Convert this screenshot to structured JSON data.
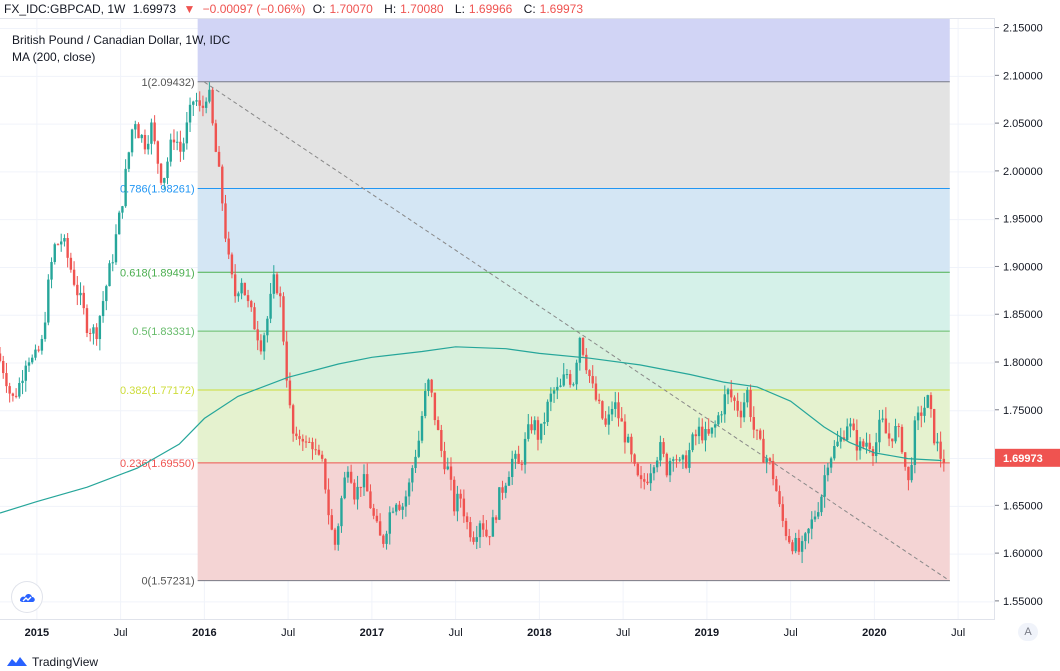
{
  "header": {
    "symbol": "FX_IDC:GBPCAD, 1W",
    "last": "1.69973",
    "change": "−0.00097 (−0.06%)",
    "o_label": "O:",
    "o": "1.70070",
    "h_label": "H:",
    "h": "1.70080",
    "l_label": "L:",
    "l": "1.69966",
    "c_label": "C:",
    "c": "1.69973"
  },
  "legend": {
    "line1": "British Pound / Canadian Dollar, 1W, IDC",
    "line2": "MA (200, close)"
  },
  "footer": {
    "brand": "TradingView"
  },
  "scale_button": "A",
  "colors": {
    "up": "#26a69a",
    "down": "#ef5350",
    "ma": "#26a69a",
    "price_tag": "#ef5350"
  },
  "icons": [
    "tradingview-logo-icon",
    "triangle-down-icon"
  ],
  "chart_data": {
    "type": "candlestick",
    "title": "British Pound / Canadian Dollar, 1W, IDC",
    "ylim": [
      1.53,
      2.16
    ],
    "xlim": [
      2014.78,
      2020.72
    ],
    "y_ticks": [
      "2.15000",
      "2.10000",
      "2.05000",
      "2.00000",
      "1.95000",
      "1.90000",
      "1.85000",
      "1.80000",
      "1.75000",
      "1.70000",
      "1.65000",
      "1.60000",
      "1.55000"
    ],
    "x_ticks": [
      {
        "label": "2015",
        "t": 2015.0
      },
      {
        "label": "Jul",
        "t": 2015.5
      },
      {
        "label": "2016",
        "t": 2016.0
      },
      {
        "label": "Jul",
        "t": 2016.5
      },
      {
        "label": "2017",
        "t": 2017.0
      },
      {
        "label": "Jul",
        "t": 2017.5
      },
      {
        "label": "2018",
        "t": 2018.0
      },
      {
        "label": "Jul",
        "t": 2018.5
      },
      {
        "label": "2019",
        "t": 2019.0
      },
      {
        "label": "Jul",
        "t": 2019.5
      },
      {
        "label": "2020",
        "t": 2020.0
      },
      {
        "label": "Jul",
        "t": 2020.5
      }
    ],
    "current_price": "1.69973",
    "fibonacci": {
      "t_start": 2015.96,
      "t_end": 2020.45,
      "top_fill_to": 2.16,
      "levels": [
        {
          "label": "1(2.09432)",
          "value": 2.09432,
          "line": "#787b86",
          "fill": "#e3e3e3"
        },
        {
          "label": "0.786(1.98261)",
          "value": 1.98261,
          "line": "#2196f3",
          "fill": "#d4e6f4"
        },
        {
          "label": "0.618(1.89491)",
          "value": 1.89491,
          "line": "#4caf50",
          "fill": "#d5f1e9"
        },
        {
          "label": "0.5(1.83331)",
          "value": 1.83331,
          "line": "#66bb6a",
          "fill": "#d7f0dc"
        },
        {
          "label": "0.382(1.77172)",
          "value": 1.77172,
          "line": "#cddc39",
          "fill": "#e5f2cf"
        },
        {
          "label": "0.236(1.69550)",
          "value": 1.6955,
          "line": "#ef5350",
          "fill": "#f4d4d4"
        },
        {
          "label": "0(1.57231)",
          "value": 1.57231,
          "line": "#787b86",
          "fill": ""
        }
      ],
      "top_band_fill": "#d1d4f5"
    },
    "trend_line": {
      "t1": 2016.0,
      "v1": 2.094,
      "t2": 2020.45,
      "v2": 1.572
    },
    "ma": {
      "name": "MA (200, close)",
      "points": [
        [
          2014.78,
          1.643
        ],
        [
          2015.0,
          1.655
        ],
        [
          2015.3,
          1.67
        ],
        [
          2015.6,
          1.69
        ],
        [
          2015.85,
          1.715
        ],
        [
          2016.0,
          1.742
        ],
        [
          2016.2,
          1.765
        ],
        [
          2016.5,
          1.785
        ],
        [
          2016.8,
          1.799
        ],
        [
          2017.0,
          1.806
        ],
        [
          2017.3,
          1.812
        ],
        [
          2017.5,
          1.817
        ],
        [
          2017.8,
          1.815
        ],
        [
          2018.0,
          1.81
        ],
        [
          2018.3,
          1.805
        ],
        [
          2018.6,
          1.798
        ],
        [
          2018.9,
          1.788
        ],
        [
          2019.1,
          1.78
        ],
        [
          2019.3,
          1.775
        ],
        [
          2019.5,
          1.76
        ],
        [
          2019.7,
          1.733
        ],
        [
          2019.85,
          1.717
        ],
        [
          2020.0,
          1.706
        ],
        [
          2020.2,
          1.7
        ],
        [
          2020.4,
          1.698
        ]
      ]
    },
    "price_path": [
      [
        2014.78,
        1.81
      ],
      [
        2014.83,
        1.79
      ],
      [
        2014.87,
        1.76
      ],
      [
        2014.92,
        1.78
      ],
      [
        2014.96,
        1.81
      ],
      [
        2015.0,
        1.8
      ],
      [
        2015.05,
        1.82
      ],
      [
        2015.08,
        1.87
      ],
      [
        2015.12,
        1.92
      ],
      [
        2015.17,
        1.93
      ],
      [
        2015.22,
        1.9
      ],
      [
        2015.27,
        1.87
      ],
      [
        2015.32,
        1.84
      ],
      [
        2015.37,
        1.83
      ],
      [
        2015.42,
        1.87
      ],
      [
        2015.47,
        1.91
      ],
      [
        2015.52,
        1.96
      ],
      [
        2015.56,
        2.01
      ],
      [
        2015.6,
        2.06
      ],
      [
        2015.63,
        2.04
      ],
      [
        2015.67,
        2.03
      ],
      [
        2015.7,
        2.05
      ],
      [
        2015.73,
        2.02
      ],
      [
        2015.77,
        1.99
      ],
      [
        2015.81,
        2.02
      ],
      [
        2015.84,
        2.04
      ],
      [
        2015.88,
        2.02
      ],
      [
        2015.92,
        2.05
      ],
      [
        2015.96,
        2.08
      ],
      [
        2016.0,
        2.06
      ],
      [
        2016.04,
        2.09
      ],
      [
        2016.08,
        2.03
      ],
      [
        2016.12,
        1.98
      ],
      [
        2016.16,
        1.91
      ],
      [
        2016.2,
        1.87
      ],
      [
        2016.24,
        1.89
      ],
      [
        2016.28,
        1.86
      ],
      [
        2016.32,
        1.84
      ],
      [
        2016.36,
        1.82
      ],
      [
        2016.4,
        1.85
      ],
      [
        2016.44,
        1.89
      ],
      [
        2016.47,
        1.87
      ],
      [
        2016.5,
        1.81
      ],
      [
        2016.53,
        1.75
      ],
      [
        2016.56,
        1.71
      ],
      [
        2016.6,
        1.73
      ],
      [
        2016.63,
        1.71
      ],
      [
        2016.66,
        1.72
      ],
      [
        2016.69,
        1.7
      ],
      [
        2016.73,
        1.69
      ],
      [
        2016.77,
        1.63
      ],
      [
        2016.8,
        1.61
      ],
      [
        2016.84,
        1.66
      ],
      [
        2016.88,
        1.7
      ],
      [
        2016.92,
        1.66
      ],
      [
        2016.96,
        1.68
      ],
      [
        2017.0,
        1.66
      ],
      [
        2017.04,
        1.63
      ],
      [
        2017.08,
        1.61
      ],
      [
        2017.12,
        1.64
      ],
      [
        2017.16,
        1.66
      ],
      [
        2017.2,
        1.65
      ],
      [
        2017.24,
        1.67
      ],
      [
        2017.27,
        1.7
      ],
      [
        2017.3,
        1.72
      ],
      [
        2017.33,
        1.76
      ],
      [
        2017.36,
        1.78
      ],
      [
        2017.39,
        1.75
      ],
      [
        2017.43,
        1.71
      ],
      [
        2017.47,
        1.69
      ],
      [
        2017.51,
        1.65
      ],
      [
        2017.55,
        1.66
      ],
      [
        2017.59,
        1.63
      ],
      [
        2017.63,
        1.62
      ],
      [
        2017.67,
        1.64
      ],
      [
        2017.7,
        1.62
      ],
      [
        2017.74,
        1.63
      ],
      [
        2017.78,
        1.66
      ],
      [
        2017.82,
        1.68
      ],
      [
        2017.86,
        1.7
      ],
      [
        2017.9,
        1.69
      ],
      [
        2017.94,
        1.72
      ],
      [
        2017.98,
        1.74
      ],
      [
        2018.02,
        1.72
      ],
      [
        2018.06,
        1.75
      ],
      [
        2018.1,
        1.77
      ],
      [
        2018.14,
        1.77
      ],
      [
        2018.18,
        1.79
      ],
      [
        2018.22,
        1.78
      ],
      [
        2018.26,
        1.83
      ],
      [
        2018.3,
        1.8
      ],
      [
        2018.34,
        1.77
      ],
      [
        2018.38,
        1.75
      ],
      [
        2018.42,
        1.73
      ],
      [
        2018.46,
        1.76
      ],
      [
        2018.5,
        1.74
      ],
      [
        2018.54,
        1.72
      ],
      [
        2018.58,
        1.69
      ],
      [
        2018.62,
        1.67
      ],
      [
        2018.66,
        1.68
      ],
      [
        2018.7,
        1.7
      ],
      [
        2018.74,
        1.71
      ],
      [
        2018.78,
        1.69
      ],
      [
        2018.82,
        1.71
      ],
      [
        2018.86,
        1.69
      ],
      [
        2018.9,
        1.7
      ],
      [
        2018.94,
        1.72
      ],
      [
        2018.98,
        1.73
      ],
      [
        2019.02,
        1.72
      ],
      [
        2019.06,
        1.73
      ],
      [
        2019.1,
        1.75
      ],
      [
        2019.14,
        1.77
      ],
      [
        2019.18,
        1.76
      ],
      [
        2019.22,
        1.75
      ],
      [
        2019.26,
        1.77
      ],
      [
        2019.3,
        1.73
      ],
      [
        2019.34,
        1.71
      ],
      [
        2019.38,
        1.7
      ],
      [
        2019.42,
        1.68
      ],
      [
        2019.46,
        1.64
      ],
      [
        2019.5,
        1.62
      ],
      [
        2019.54,
        1.61
      ],
      [
        2019.58,
        1.6
      ],
      [
        2019.62,
        1.62
      ],
      [
        2019.66,
        1.64
      ],
      [
        2019.7,
        1.66
      ],
      [
        2019.74,
        1.7
      ],
      [
        2019.78,
        1.71
      ],
      [
        2019.82,
        1.72
      ],
      [
        2019.86,
        1.74
      ],
      [
        2019.9,
        1.72
      ],
      [
        2019.94,
        1.71
      ],
      [
        2019.98,
        1.72
      ],
      [
        2020.02,
        1.71
      ],
      [
        2020.06,
        1.74
      ],
      [
        2020.1,
        1.72
      ],
      [
        2020.14,
        1.73
      ],
      [
        2020.18,
        1.72
      ],
      [
        2020.22,
        1.67
      ],
      [
        2020.26,
        1.73
      ],
      [
        2020.3,
        1.75
      ],
      [
        2020.34,
        1.76
      ],
      [
        2020.38,
        1.72
      ],
      [
        2020.42,
        1.7
      ]
    ]
  }
}
